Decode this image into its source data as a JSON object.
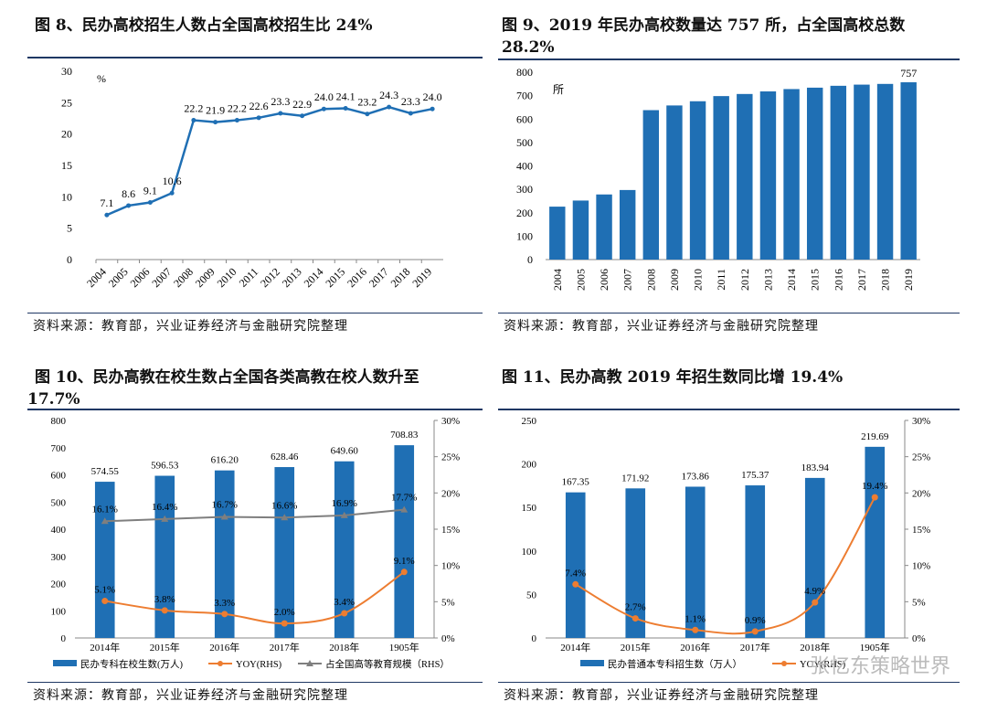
{
  "figures": [
    {
      "title": "图 8、民办高校招生人数占全国高校招生比 24%",
      "source": "资料来源：教育部，兴业证券经济与金融研究院整理"
    },
    {
      "title": "图 9、2019 年民办高校数量达 757 所，占全国高校总数",
      "title_line2": "28.2%",
      "source": "资料来源：教育部，兴业证券经济与金融研究院整理"
    },
    {
      "title": "图 10、民办高教在校生数占全国各类高教在校人数升至",
      "title_line2": "17.7%",
      "source": "资料来源：教育部，兴业证券经济与金融研究院整理"
    },
    {
      "title": "图 11、民办高教 2019 年招生数同比增 19.4%",
      "source": "资料来源：教育部，兴业证券经济与金融研究院整理"
    }
  ],
  "watermark": "张忆东策略世界",
  "colors": {
    "blue": "#1f6fb4",
    "orange": "#ed7d31",
    "gray": "#7f7f7f",
    "rule": "#1f3864"
  },
  "chart_data": [
    {
      "type": "line",
      "x": [
        "2004",
        "2005",
        "2006",
        "2007",
        "2008",
        "2009",
        "2010",
        "2011",
        "2012",
        "2013",
        "2014",
        "2015",
        "2016",
        "2017",
        "2018",
        "2019"
      ],
      "values": [
        7.1,
        8.6,
        9.1,
        10.6,
        22.2,
        21.9,
        22.2,
        22.6,
        23.3,
        22.9,
        24.0,
        24.1,
        23.2,
        24.3,
        23.3,
        24.0
      ],
      "labels": [
        "7.1",
        "8.6",
        "9.1",
        "10.6",
        "22.2",
        "21.9",
        "22.2",
        "22.6",
        "23.3",
        "22.9",
        "24.0",
        "24.1",
        "23.2",
        "24.3",
        "23.3",
        "24.0"
      ],
      "unit": "%",
      "ylim": [
        0,
        30
      ],
      "yticks": [
        "0",
        "5",
        "10",
        "15",
        "20",
        "25",
        "30"
      ],
      "title": "民办高校招生人数占全国高校招生比"
    },
    {
      "type": "bar",
      "categories": [
        "2004",
        "2005",
        "2006",
        "2007",
        "2008",
        "2009",
        "2010",
        "2011",
        "2012",
        "2013",
        "2014",
        "2015",
        "2016",
        "2017",
        "2018",
        "2019"
      ],
      "values": [
        226,
        252,
        278,
        297,
        638,
        658,
        676,
        698,
        707,
        718,
        728,
        734,
        742,
        747,
        750,
        757
      ],
      "end_label": "757",
      "unit": "所",
      "ylim": [
        0,
        800
      ],
      "yticks": [
        "0",
        "100",
        "200",
        "300",
        "400",
        "500",
        "600",
        "700",
        "800"
      ],
      "title": "民办高校数量"
    },
    {
      "type": "bar+line",
      "categories": [
        "2014年",
        "2015年",
        "2016年",
        "2017年",
        "2018年",
        "1905年"
      ],
      "bars": {
        "name": "民办专科在校生数(万人)",
        "values": [
          574.55,
          596.53,
          616.2,
          628.46,
          649.6,
          708.83
        ],
        "labels": [
          "574.55",
          "596.53",
          "616.20",
          "628.46",
          "649.60",
          "708.83"
        ]
      },
      "yoy": {
        "name": "YOY(RHS)",
        "values": [
          5.1,
          3.8,
          3.3,
          2.0,
          3.4,
          9.1
        ],
        "labels": [
          "5.1%",
          "3.8%",
          "3.3%",
          "2.0%",
          "3.4%",
          "9.1%"
        ]
      },
      "share": {
        "name": "占全国高等教育规模（RHS）",
        "values": [
          16.1,
          16.4,
          16.7,
          16.6,
          16.9,
          17.7
        ],
        "labels": [
          "16.1%",
          "16.4%",
          "16.7%",
          "16.6%",
          "16.9%",
          "17.7%"
        ]
      },
      "ylim": [
        0,
        800
      ],
      "yticks": [
        "0",
        "100",
        "200",
        "300",
        "400",
        "500",
        "600",
        "700",
        "800"
      ],
      "y2lim": [
        0,
        30
      ],
      "y2ticks": [
        "0%",
        "5%",
        "10%",
        "15%",
        "20%",
        "25%",
        "30%"
      ]
    },
    {
      "type": "bar+line",
      "categories": [
        "2014年",
        "2015年",
        "2016年",
        "2017年",
        "2018年",
        "1905年"
      ],
      "bars": {
        "name": "民办普通本专科招生数（万人）",
        "values": [
          167.35,
          171.92,
          173.86,
          175.37,
          183.94,
          219.69
        ],
        "labels": [
          "167.35",
          "171.92",
          "173.86",
          "175.37",
          "183.94",
          "219.69"
        ]
      },
      "yoy": {
        "name": "YOY(RHS)",
        "values": [
          7.4,
          2.7,
          1.1,
          0.9,
          4.9,
          19.4
        ],
        "labels": [
          "7.4%",
          "2.7%",
          "1.1%",
          "0.9%",
          "4.9%",
          "19.4%"
        ]
      },
      "ylim": [
        0,
        250
      ],
      "yticks": [
        "0",
        "50",
        "100",
        "150",
        "200",
        "250"
      ],
      "y2lim": [
        0,
        30
      ],
      "y2ticks": [
        "0%",
        "5%",
        "10%",
        "15%",
        "20%",
        "25%",
        "30%"
      ]
    }
  ]
}
